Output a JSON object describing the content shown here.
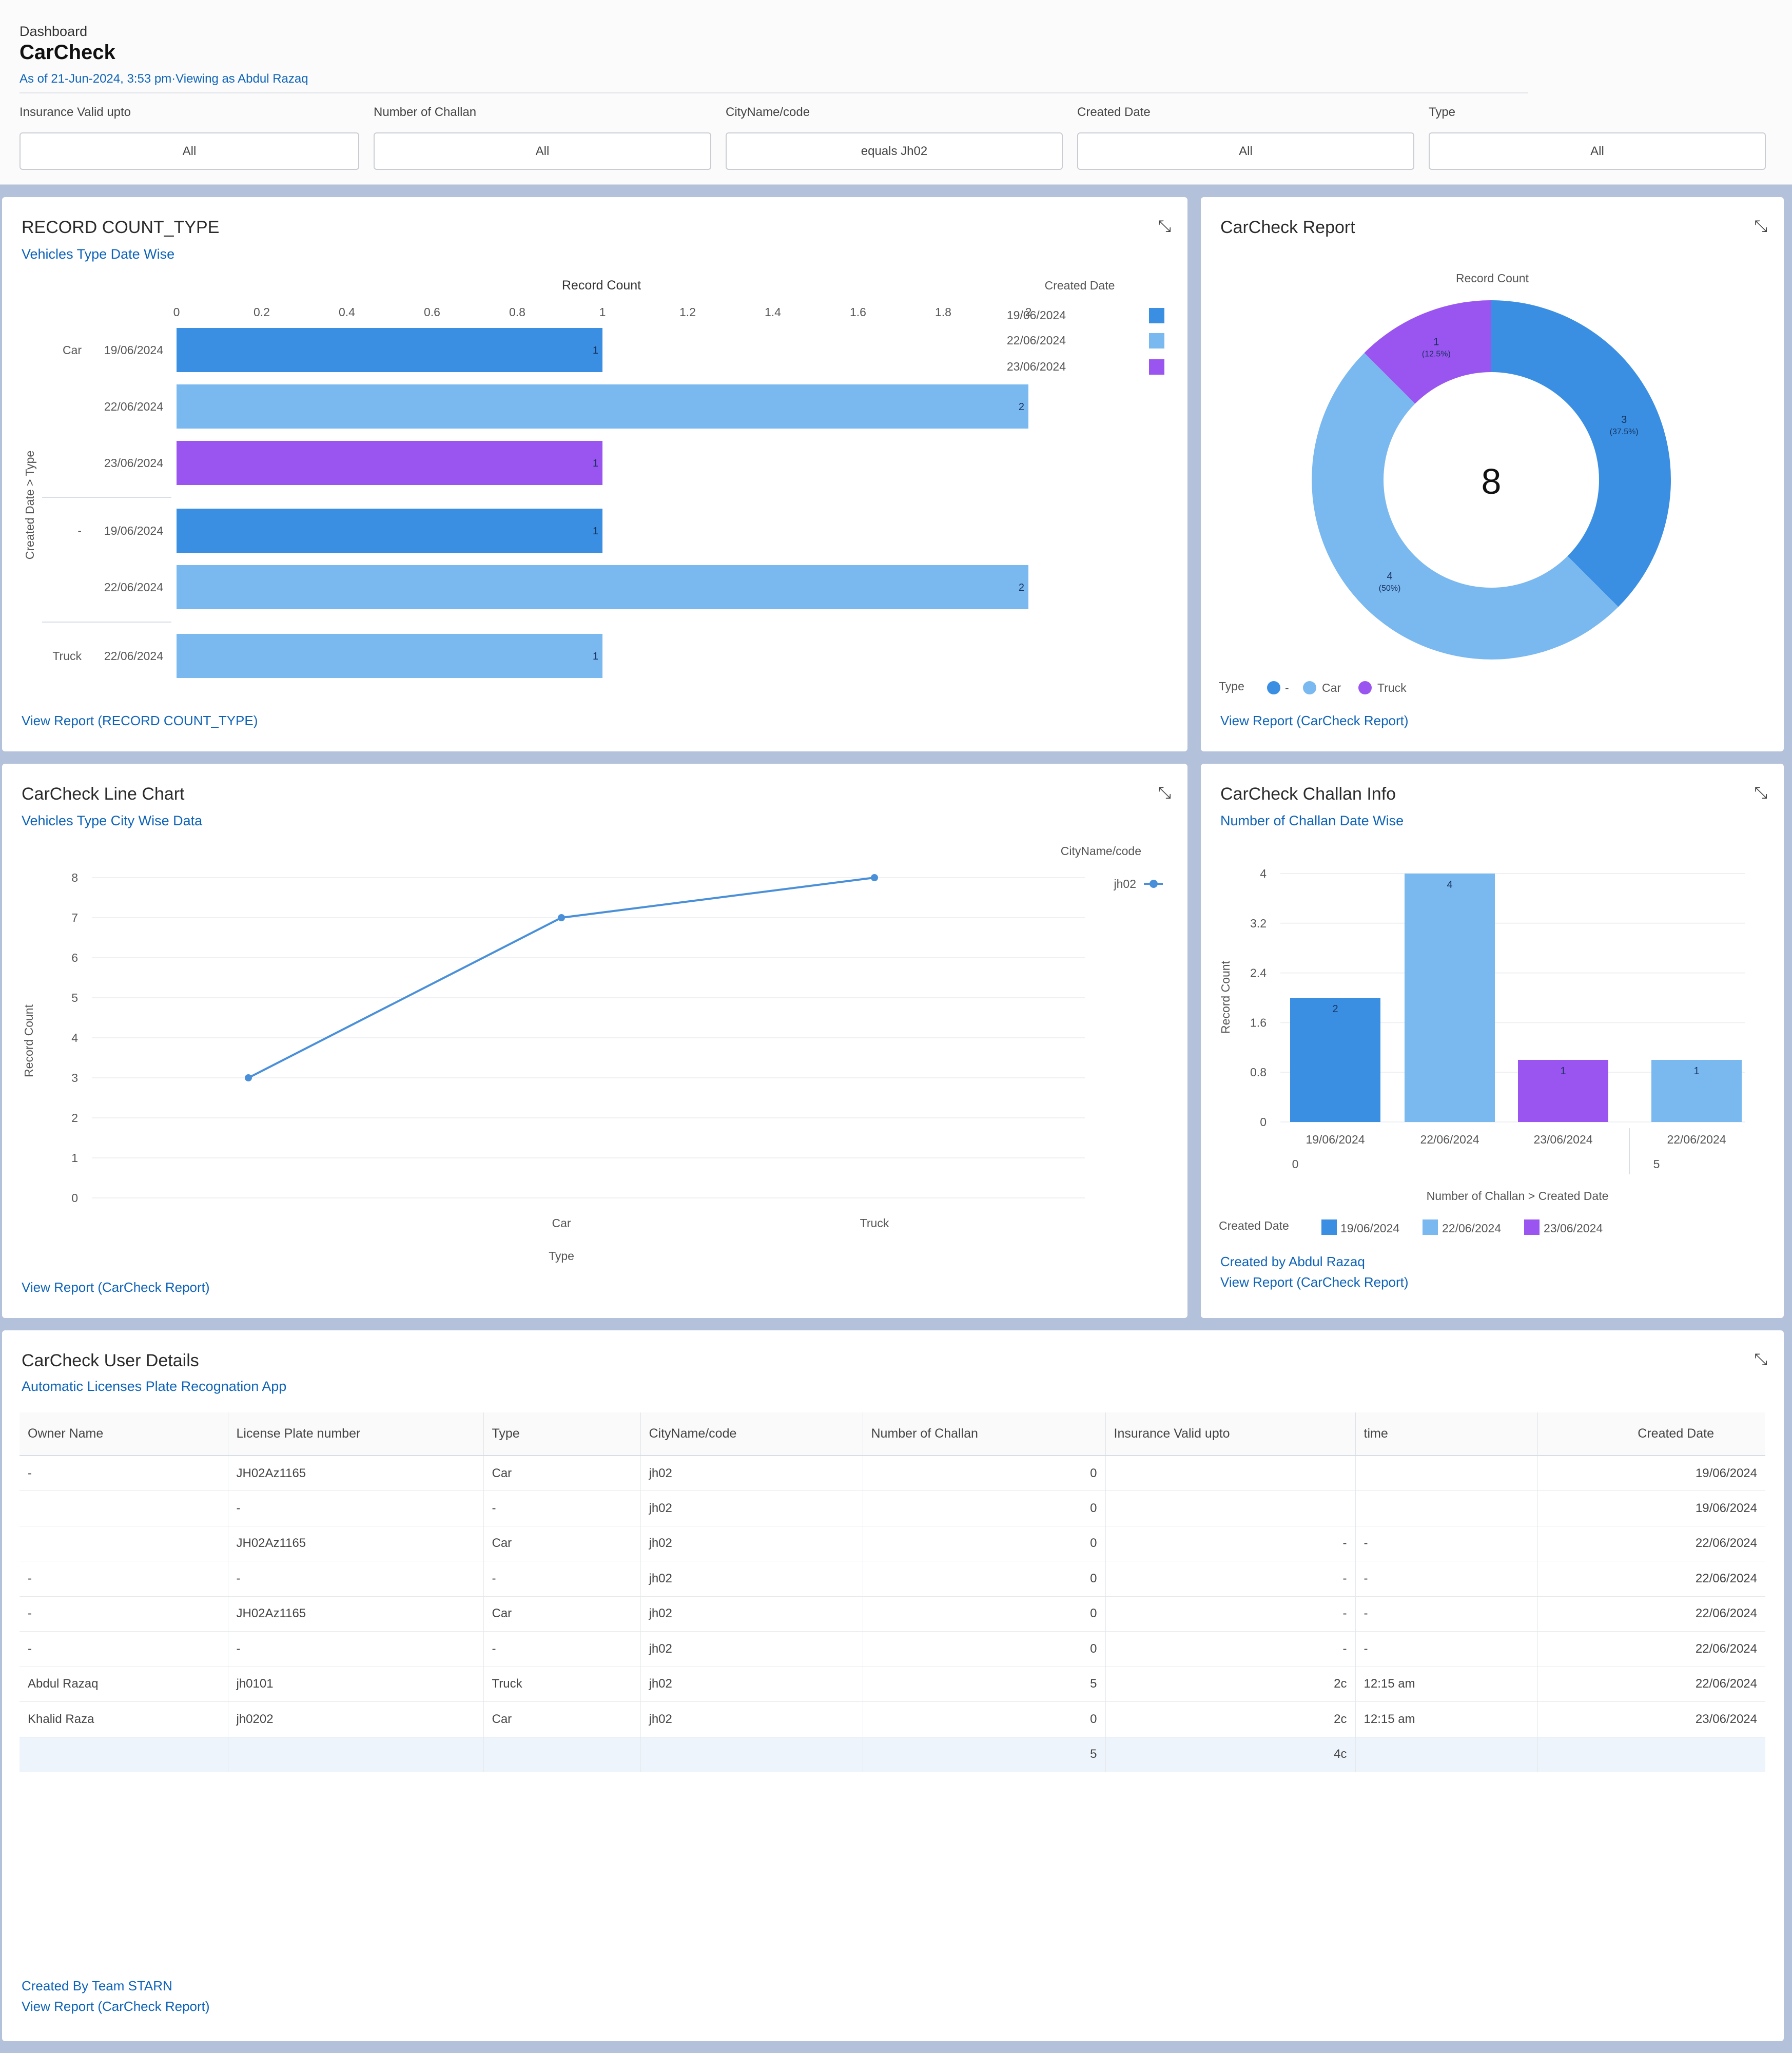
{
  "header": {
    "breadcrumb": "Dashboard",
    "title": "CarCheck",
    "subtitle": "As of 21-Jun-2024, 3:53 pm·Viewing as Abdul Razaq"
  },
  "filters": [
    {
      "label": "Insurance Valid upto",
      "value": "All"
    },
    {
      "label": "Number of Challan",
      "value": "All"
    },
    {
      "label": "CityName/code",
      "value": "equals Jh02"
    },
    {
      "label": "Created Date",
      "value": "All"
    },
    {
      "label": "Type",
      "value": "All"
    }
  ],
  "colors": {
    "d19": "#3a8fe3",
    "d22": "#7ab8f0",
    "d23": "#9a55f0",
    "line": "#4a90d9",
    "link": "#0d63b9"
  },
  "card1": {
    "title": "RECORD COUNT_TYPE",
    "subtitle": "Vehicles Type Date Wise",
    "link": "View Report (RECORD COUNT_TYPE)",
    "axis_title": "Record Count",
    "y_axis_title": "Created Date > Type",
    "legend_title": "Created Date",
    "legend": [
      "19/06/2024",
      "22/06/2024",
      "23/06/2024"
    ]
  },
  "card2": {
    "title": "CarCheck Report",
    "link": "View Report (CarCheck Report)",
    "center_total": "8",
    "legend_title": "Type",
    "legend": [
      "-",
      "Car",
      "Truck"
    ],
    "chart_title": "Record Count"
  },
  "card3": {
    "title": "CarCheck Line Chart",
    "subtitle": "Vehicles Type City Wise Data",
    "link": "View Report (CarCheck Report)",
    "legend_title": "CityName/code",
    "legend_item": "jh02"
  },
  "card4": {
    "title": "CarCheck Challan Info",
    "subtitle": "Number of Challan Date Wise",
    "link1": "Created by Abdul Razaq",
    "link2": "View Report (CarCheck Report)",
    "legend_title": "Created Date",
    "legend": [
      "19/06/2024",
      "22/06/2024",
      "23/06/2024"
    ]
  },
  "card5": {
    "title": "CarCheck User Details",
    "subtitle": "Automatic Licenses Plate Recognation App",
    "footer1": "Created By Team STARN",
    "footer2": "View Report (CarCheck Report)",
    "columns": [
      "Owner Name",
      "License Plate number",
      "Type",
      "CityName/code",
      "Number of Challan",
      "Insurance Valid upto",
      "time",
      "Created Date"
    ],
    "rows": [
      [
        "-",
        "JH02Az1165",
        "Car",
        "jh02",
        "0",
        "",
        "",
        "19/06/2024"
      ],
      [
        "",
        "-",
        "-",
        "jh02",
        "0",
        "",
        "",
        "19/06/2024"
      ],
      [
        "",
        "JH02Az1165",
        "Car",
        "jh02",
        "0",
        "-",
        "-",
        "22/06/2024"
      ],
      [
        "-",
        "-",
        "-",
        "jh02",
        "0",
        "-",
        "-",
        "22/06/2024"
      ],
      [
        "-",
        "JH02Az1165",
        "Car",
        "jh02",
        "0",
        "-",
        "-",
        "22/06/2024"
      ],
      [
        "-",
        "-",
        "-",
        "jh02",
        "0",
        "-",
        "-",
        "22/06/2024"
      ],
      [
        "Abdul Razaq",
        "jh0101",
        "Truck",
        "jh02",
        "5",
        "2c",
        "12:15 am",
        "22/06/2024"
      ],
      [
        "Khalid Raza",
        "jh0202",
        "Car",
        "jh02",
        "0",
        "2c",
        "12:15 am",
        "23/06/2024"
      ]
    ],
    "totals": [
      "",
      "",
      "",
      "",
      "5",
      "4c",
      "",
      ""
    ]
  },
  "chart_data": [
    {
      "type": "bar",
      "orientation": "horizontal",
      "title": "RECORD COUNT_TYPE",
      "xlabel": "Record Count",
      "ylabel": "Created Date > Type",
      "xlim": [
        0,
        2
      ],
      "ticks": [
        "0",
        "0.2",
        "0.4",
        "0.6",
        "0.8",
        "1",
        "1.2",
        "1.4",
        "1.6",
        "1.8",
        "2"
      ],
      "groups": [
        {
          "type": "Car",
          "bars": [
            {
              "date": "19/06/2024",
              "value": 1
            },
            {
              "date": "22/06/2024",
              "value": 2
            },
            {
              "date": "23/06/2024",
              "value": 1
            }
          ]
        },
        {
          "type": "-",
          "bars": [
            {
              "date": "19/06/2024",
              "value": 1
            },
            {
              "date": "22/06/2024",
              "value": 2
            }
          ]
        },
        {
          "type": "Truck",
          "bars": [
            {
              "date": "22/06/2024",
              "value": 1
            }
          ]
        }
      ]
    },
    {
      "type": "pie",
      "title": "Record Count",
      "total": 8,
      "slices": [
        {
          "label": "-",
          "value": 3,
          "pct": "37.5%"
        },
        {
          "label": "Car",
          "value": 4,
          "pct": "50%"
        },
        {
          "label": "Truck",
          "value": 1,
          "pct": "12.5%"
        }
      ]
    },
    {
      "type": "line",
      "xlabel": "Type",
      "ylabel": "Record Count",
      "ylim": [
        0,
        8
      ],
      "yticks": [
        "0",
        "1",
        "2",
        "3",
        "4",
        "5",
        "6",
        "7",
        "8"
      ],
      "categories": [
        "-",
        "Car",
        "Truck"
      ],
      "series": [
        {
          "name": "jh02",
          "values": [
            3,
            7,
            8
          ]
        }
      ]
    },
    {
      "type": "bar",
      "xlabel": "Number of Challan > Created Date",
      "ylabel": "Record Count",
      "ylim": [
        0,
        4
      ],
      "yticks": [
        "0",
        "0.8",
        "1.6",
        "2.4",
        "3.2",
        "4"
      ],
      "groups": [
        {
          "challan": "0",
          "bars": [
            {
              "date": "19/06/2024",
              "value": 2
            },
            {
              "date": "22/06/2024",
              "value": 4
            },
            {
              "date": "23/06/2024",
              "value": 1
            }
          ]
        },
        {
          "challan": "5",
          "bars": [
            {
              "date": "22/06/2024",
              "value": 1
            }
          ]
        }
      ]
    }
  ]
}
